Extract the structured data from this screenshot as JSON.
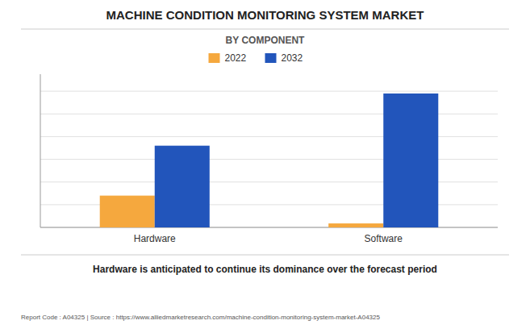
{
  "chart_data": {
    "type": "bar",
    "title": "MACHINE CONDITION MONITORING SYSTEM MARKET",
    "subtitle": "BY COMPONENT",
    "categories": [
      "Hardware",
      "Software"
    ],
    "series": [
      {
        "name": "2022",
        "color": "#F5A83E",
        "values": [
          2.8,
          0.35
        ]
      },
      {
        "name": "2032",
        "color": "#2255BB",
        "values": [
          7.2,
          11.8
        ]
      }
    ],
    "ylim": [
      0,
      13.5
    ],
    "yticks": [
      0,
      2,
      4,
      6,
      8,
      10,
      12
    ],
    "grid": true,
    "legend": "top",
    "tick_labels": "x",
    "annotations": [
      "Hardware is anticipated to continue its dominance over the forecast period",
      "Report Code : A04325  |  Source : https://www.alliedmarketresearch.com/machine-condition-monitoring-system-market-A04325"
    ]
  }
}
